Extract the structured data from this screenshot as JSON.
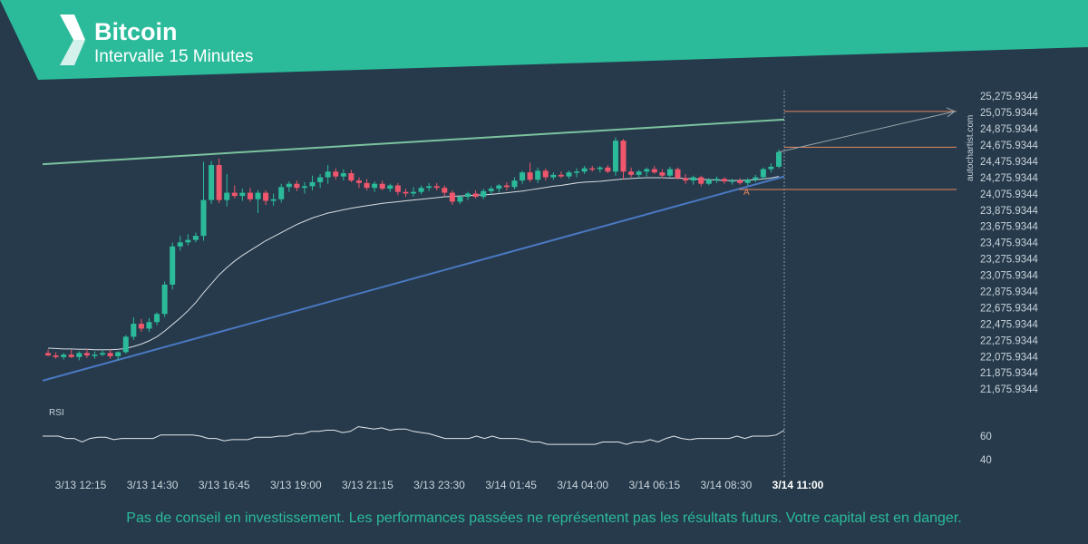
{
  "header": {
    "title": "Bitcoin",
    "subtitle": "Intervalle 15 Minutes",
    "logo_icon": "autochartist-logo-icon",
    "banner_color": "#2bbb9b"
  },
  "watermark": "autochartist.com",
  "rsi_label": "RSI",
  "pattern_point_label": "A",
  "disclaimer": "Pas de conseil en investissement. Les performances passées ne représentent pas les résultats futurs. Votre capital est en danger.",
  "chart_data": {
    "type": "candlestick",
    "price_axis": {
      "ticks": [
        "25,275.9344",
        "25,075.9344",
        "24,875.9344",
        "24,675.9344",
        "24,475.9344",
        "24,275.9344",
        "24,075.9344",
        "23,875.9344",
        "23,675.9344",
        "23,475.9344",
        "23,275.9344",
        "23,075.9344",
        "22,875.9344",
        "22,675.9344",
        "22,475.9344",
        "22,275.9344",
        "22,075.9344",
        "21,875.9344",
        "21,675.9344"
      ],
      "range": [
        21600,
        25300
      ]
    },
    "rsi_axis": {
      "ticks": [
        "60",
        "40"
      ],
      "range": [
        30,
        80
      ]
    },
    "time_labels": [
      "3/13 12:15",
      "3/13 14:30",
      "3/13 16:45",
      "3/13 19:00",
      "3/13 21:15",
      "3/13 23:30",
      "3/14 01:45",
      "3/14 04:00",
      "3/14 06:15",
      "3/14 08:30",
      "3/14 11:00"
    ],
    "candles": [
      {
        "o": 22120,
        "h": 22160,
        "l": 22080,
        "c": 22090
      },
      {
        "o": 22090,
        "h": 22130,
        "l": 22050,
        "c": 22070
      },
      {
        "o": 22070,
        "h": 22120,
        "l": 22040,
        "c": 22100
      },
      {
        "o": 22100,
        "h": 22160,
        "l": 22060,
        "c": 22070
      },
      {
        "o": 22070,
        "h": 22140,
        "l": 22030,
        "c": 22120
      },
      {
        "o": 22120,
        "h": 22170,
        "l": 22060,
        "c": 22090
      },
      {
        "o": 22090,
        "h": 22140,
        "l": 22050,
        "c": 22100
      },
      {
        "o": 22100,
        "h": 22160,
        "l": 22080,
        "c": 22120
      },
      {
        "o": 22120,
        "h": 22160,
        "l": 22050,
        "c": 22080
      },
      {
        "o": 22080,
        "h": 22140,
        "l": 22030,
        "c": 22130
      },
      {
        "o": 22130,
        "h": 22340,
        "l": 22110,
        "c": 22320
      },
      {
        "o": 22320,
        "h": 22560,
        "l": 22280,
        "c": 22480
      },
      {
        "o": 22480,
        "h": 22540,
        "l": 22380,
        "c": 22420
      },
      {
        "o": 22420,
        "h": 22550,
        "l": 22380,
        "c": 22500
      },
      {
        "o": 22500,
        "h": 22620,
        "l": 22460,
        "c": 22600
      },
      {
        "o": 22600,
        "h": 23000,
        "l": 22560,
        "c": 22960
      },
      {
        "o": 22960,
        "h": 23480,
        "l": 22900,
        "c": 23430
      },
      {
        "o": 23430,
        "h": 23560,
        "l": 23380,
        "c": 23480
      },
      {
        "o": 23480,
        "h": 23580,
        "l": 23440,
        "c": 23510
      },
      {
        "o": 23510,
        "h": 23600,
        "l": 23480,
        "c": 23560
      },
      {
        "o": 23560,
        "h": 24470,
        "l": 23500,
        "c": 24000
      },
      {
        "o": 24000,
        "h": 24480,
        "l": 23950,
        "c": 24430
      },
      {
        "o": 24430,
        "h": 24510,
        "l": 23960,
        "c": 24000
      },
      {
        "o": 24000,
        "h": 24320,
        "l": 23920,
        "c": 24090
      },
      {
        "o": 24090,
        "h": 24180,
        "l": 24020,
        "c": 24050
      },
      {
        "o": 24050,
        "h": 24140,
        "l": 23990,
        "c": 24090
      },
      {
        "o": 24090,
        "h": 24150,
        "l": 23980,
        "c": 24010
      },
      {
        "o": 24010,
        "h": 24120,
        "l": 23840,
        "c": 24090
      },
      {
        "o": 24090,
        "h": 24120,
        "l": 23940,
        "c": 23990
      },
      {
        "o": 23990,
        "h": 24080,
        "l": 23930,
        "c": 24010
      },
      {
        "o": 24010,
        "h": 24200,
        "l": 23970,
        "c": 24160
      },
      {
        "o": 24160,
        "h": 24230,
        "l": 24100,
        "c": 24200
      },
      {
        "o": 24200,
        "h": 24240,
        "l": 24110,
        "c": 24150
      },
      {
        "o": 24150,
        "h": 24220,
        "l": 24080,
        "c": 24170
      },
      {
        "o": 24170,
        "h": 24300,
        "l": 24120,
        "c": 24220
      },
      {
        "o": 24220,
        "h": 24320,
        "l": 24150,
        "c": 24280
      },
      {
        "o": 24280,
        "h": 24430,
        "l": 24200,
        "c": 24350
      },
      {
        "o": 24350,
        "h": 24390,
        "l": 24250,
        "c": 24290
      },
      {
        "o": 24290,
        "h": 24380,
        "l": 24240,
        "c": 24330
      },
      {
        "o": 24330,
        "h": 24370,
        "l": 24220,
        "c": 24240
      },
      {
        "o": 24240,
        "h": 24280,
        "l": 24150,
        "c": 24210
      },
      {
        "o": 24210,
        "h": 24260,
        "l": 24120,
        "c": 24150
      },
      {
        "o": 24150,
        "h": 24230,
        "l": 24100,
        "c": 24200
      },
      {
        "o": 24200,
        "h": 24240,
        "l": 24120,
        "c": 24140
      },
      {
        "o": 24140,
        "h": 24200,
        "l": 24100,
        "c": 24180
      },
      {
        "o": 24180,
        "h": 24210,
        "l": 24060,
        "c": 24100
      },
      {
        "o": 24100,
        "h": 24140,
        "l": 24040,
        "c": 24080
      },
      {
        "o": 24080,
        "h": 24160,
        "l": 24040,
        "c": 24100
      },
      {
        "o": 24100,
        "h": 24180,
        "l": 24070,
        "c": 24150
      },
      {
        "o": 24150,
        "h": 24210,
        "l": 24110,
        "c": 24170
      },
      {
        "o": 24170,
        "h": 24210,
        "l": 24120,
        "c": 24150
      },
      {
        "o": 24150,
        "h": 24180,
        "l": 24050,
        "c": 24090
      },
      {
        "o": 24090,
        "h": 24120,
        "l": 23940,
        "c": 23980
      },
      {
        "o": 23980,
        "h": 24060,
        "l": 23950,
        "c": 24040
      },
      {
        "o": 24040,
        "h": 24100,
        "l": 24000,
        "c": 24080
      },
      {
        "o": 24080,
        "h": 24120,
        "l": 24020,
        "c": 24040
      },
      {
        "o": 24040,
        "h": 24140,
        "l": 24010,
        "c": 24110
      },
      {
        "o": 24110,
        "h": 24170,
        "l": 24070,
        "c": 24140
      },
      {
        "o": 24140,
        "h": 24200,
        "l": 24090,
        "c": 24180
      },
      {
        "o": 24180,
        "h": 24220,
        "l": 24120,
        "c": 24160
      },
      {
        "o": 24160,
        "h": 24280,
        "l": 24130,
        "c": 24240
      },
      {
        "o": 24240,
        "h": 24360,
        "l": 24200,
        "c": 24340
      },
      {
        "o": 24340,
        "h": 24460,
        "l": 24220,
        "c": 24250
      },
      {
        "o": 24250,
        "h": 24400,
        "l": 24210,
        "c": 24360
      },
      {
        "o": 24360,
        "h": 24390,
        "l": 24240,
        "c": 24280
      },
      {
        "o": 24280,
        "h": 24340,
        "l": 24250,
        "c": 24310
      },
      {
        "o": 24310,
        "h": 24350,
        "l": 24270,
        "c": 24290
      },
      {
        "o": 24290,
        "h": 24360,
        "l": 24260,
        "c": 24340
      },
      {
        "o": 24340,
        "h": 24390,
        "l": 24280,
        "c": 24350
      },
      {
        "o": 24350,
        "h": 24420,
        "l": 24320,
        "c": 24390
      },
      {
        "o": 24390,
        "h": 24420,
        "l": 24350,
        "c": 24380
      },
      {
        "o": 24380,
        "h": 24420,
        "l": 24340,
        "c": 24400
      },
      {
        "o": 24400,
        "h": 24430,
        "l": 24330,
        "c": 24350
      },
      {
        "o": 24350,
        "h": 24770,
        "l": 24300,
        "c": 24730
      },
      {
        "o": 24730,
        "h": 24750,
        "l": 24250,
        "c": 24350
      },
      {
        "o": 24350,
        "h": 24400,
        "l": 24280,
        "c": 24310
      },
      {
        "o": 24310,
        "h": 24370,
        "l": 24270,
        "c": 24350
      },
      {
        "o": 24350,
        "h": 24400,
        "l": 24290,
        "c": 24380
      },
      {
        "o": 24380,
        "h": 24420,
        "l": 24320,
        "c": 24340
      },
      {
        "o": 24340,
        "h": 24380,
        "l": 24270,
        "c": 24300
      },
      {
        "o": 24300,
        "h": 24410,
        "l": 24280,
        "c": 24380
      },
      {
        "o": 24380,
        "h": 24400,
        "l": 24250,
        "c": 24270
      },
      {
        "o": 24270,
        "h": 24320,
        "l": 24200,
        "c": 24240
      },
      {
        "o": 24240,
        "h": 24300,
        "l": 24190,
        "c": 24280
      },
      {
        "o": 24280,
        "h": 24300,
        "l": 24170,
        "c": 24200
      },
      {
        "o": 24200,
        "h": 24270,
        "l": 24180,
        "c": 24250
      },
      {
        "o": 24250,
        "h": 24290,
        "l": 24210,
        "c": 24260
      },
      {
        "o": 24260,
        "h": 24280,
        "l": 24200,
        "c": 24230
      },
      {
        "o": 24230,
        "h": 24260,
        "l": 24190,
        "c": 24240
      },
      {
        "o": 24240,
        "h": 24270,
        "l": 24190,
        "c": 24210
      },
      {
        "o": 24210,
        "h": 24270,
        "l": 24180,
        "c": 24250
      },
      {
        "o": 24250,
        "h": 24310,
        "l": 24220,
        "c": 24280
      },
      {
        "o": 24280,
        "h": 24400,
        "l": 24250,
        "c": 24380
      },
      {
        "o": 24380,
        "h": 24450,
        "l": 24340,
        "c": 24410
      },
      {
        "o": 24410,
        "h": 24620,
        "l": 24390,
        "c": 24590
      }
    ],
    "moving_average": [
      22180,
      22175,
      22170,
      22170,
      22165,
      22165,
      22160,
      22160,
      22160,
      22165,
      22175,
      22200,
      22230,
      22270,
      22320,
      22390,
      22470,
      22550,
      22640,
      22740,
      22860,
      22970,
      23080,
      23170,
      23250,
      23320,
      23380,
      23440,
      23500,
      23550,
      23600,
      23650,
      23700,
      23740,
      23780,
      23810,
      23840,
      23860,
      23880,
      23900,
      23915,
      23930,
      23945,
      23960,
      23970,
      23980,
      23990,
      24000,
      24010,
      24020,
      24030,
      24040,
      24045,
      24050,
      24055,
      24060,
      24065,
      24070,
      24080,
      24090,
      24100,
      24110,
      24125,
      24140,
      24155,
      24170,
      24180,
      24195,
      24210,
      24220,
      24225,
      24230,
      24240,
      24250,
      24260,
      24265,
      24270,
      24275,
      24275,
      24275,
      24270,
      24270,
      24265,
      24260,
      24255,
      24250,
      24245,
      24240,
      24240,
      24240,
      24245,
      24250,
      24260,
      24270,
      24290
    ],
    "channel_upper": {
      "start": 24440,
      "end": 24990
    },
    "channel_lower": {
      "start": 21780,
      "end": 24290
    },
    "forecast_target": 25090,
    "forecast_levels": [
      25090,
      24650,
      24130
    ],
    "rsi_values": [
      60,
      60,
      60,
      58,
      58,
      55,
      58,
      59,
      59,
      57,
      58,
      58,
      58,
      58,
      58,
      61,
      61,
      61,
      61,
      61,
      60,
      58,
      58,
      56,
      57,
      57,
      57,
      59,
      59,
      59,
      60,
      60,
      62,
      62,
      64,
      64,
      65,
      65,
      63,
      64,
      68,
      67,
      66,
      67,
      65,
      66,
      66,
      64,
      63,
      62,
      60,
      58,
      58,
      58,
      58,
      60,
      58,
      60,
      58,
      58,
      58,
      57,
      55,
      55,
      53,
      53,
      53,
      53,
      53,
      53,
      53,
      55,
      55,
      55,
      53,
      55,
      55,
      57,
      55,
      58,
      60,
      58,
      57,
      58,
      58,
      58,
      58,
      58,
      60,
      58,
      60,
      60,
      60,
      61,
      65
    ]
  }
}
